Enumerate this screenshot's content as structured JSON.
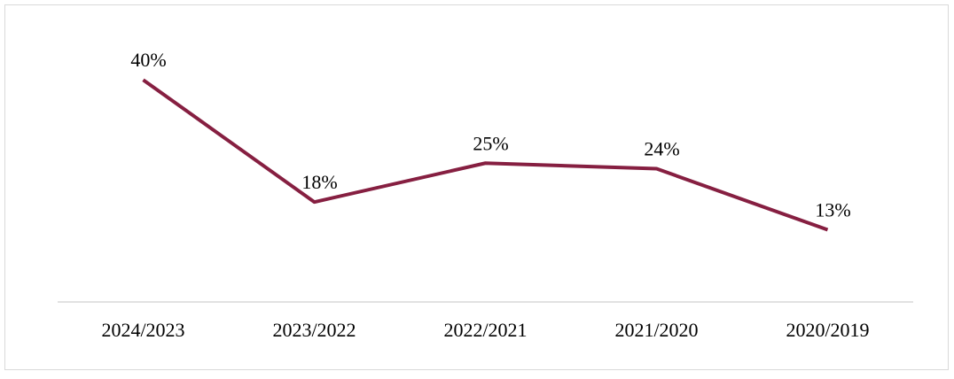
{
  "chart_data": {
    "type": "line",
    "categories": [
      "2024/2023",
      "2023/2022",
      "2022/2021",
      "2021/2020",
      "2020/2019"
    ],
    "series": [
      {
        "color": "#861f41",
        "values": [
          40,
          18,
          25,
          24,
          13
        ],
        "value_labels": [
          "40%",
          "18%",
          "25%",
          "24%",
          "13%"
        ]
      }
    ],
    "ylim": [
      0,
      50
    ]
  }
}
